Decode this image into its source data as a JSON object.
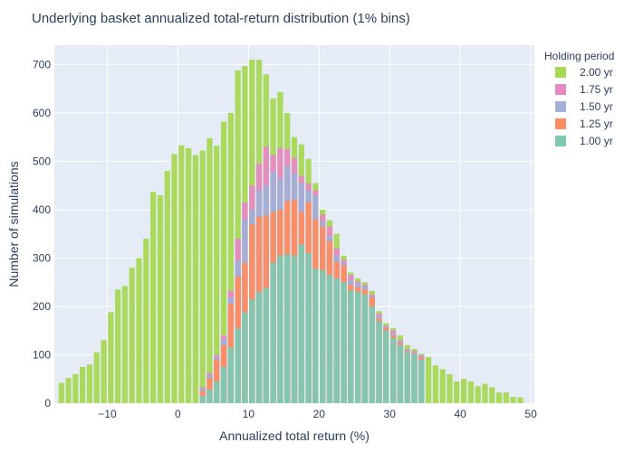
{
  "chart_data": {
    "type": "bar",
    "title": "Underlying basket annualized total-return distribution (1% bins)",
    "xlabel": "Annualized total return (%)",
    "ylabel": "Number of simulations",
    "xlim": [
      -17.5,
      50.5
    ],
    "ylim": [
      0,
      740
    ],
    "xticks": [
      -10,
      0,
      10,
      20,
      30,
      40,
      50
    ],
    "yticks": [
      0,
      100,
      200,
      300,
      400,
      500,
      600,
      700
    ],
    "barmode": "overlay",
    "legend_title": "Holding period",
    "legend_position": "top-right",
    "background": "#e5ecf6",
    "series": [
      {
        "name": "2.00 yr",
        "color": "#a6d854",
        "x": [
          -16.5,
          -15.5,
          -14.5,
          -13.5,
          -12.5,
          -11.5,
          -10.5,
          -9.5,
          -8.5,
          -7.5,
          -6.5,
          -5.5,
          -4.5,
          -3.5,
          -2.5,
          -1.5,
          -0.5,
          0.5,
          1.5,
          2.5,
          3.5,
          4.5,
          5.5,
          6.5,
          7.5,
          8.5,
          9.5,
          10.5,
          11.5,
          12.5,
          13.5,
          14.5,
          15.5,
          16.5,
          17.5,
          18.5,
          19.5,
          20.5,
          21.5,
          22.5,
          23.5,
          24.5,
          25.5,
          26.5,
          27.5,
          28.5,
          29.5,
          30.5,
          31.5,
          32.5,
          33.5,
          34.5,
          35.5,
          36.5,
          37.5,
          38.5,
          39.5,
          40.5,
          41.5,
          42.5,
          43.5,
          44.5,
          45.5,
          46.5,
          47.5,
          48.5
        ],
        "values": [
          42,
          52,
          60,
          75,
          80,
          105,
          130,
          188,
          235,
          242,
          280,
          300,
          340,
          437,
          430,
          480,
          515,
          533,
          527,
          513,
          522,
          548,
          532,
          582,
          600,
          688,
          697,
          710,
          710,
          680,
          630,
          643,
          600,
          550,
          535,
          505,
          455,
          400,
          378,
          350,
          305,
          270,
          258,
          250,
          232,
          190,
          165,
          155,
          140,
          120,
          112,
          102,
          95,
          78,
          70,
          60,
          45,
          50,
          45,
          35,
          40,
          33,
          22,
          22,
          13,
          12
        ]
      },
      {
        "name": "1.75 yr",
        "color": "#e78ac3",
        "x": [
          3.5,
          4.5,
          5.5,
          6.5,
          7.5,
          8.5,
          9.5,
          10.5,
          11.5,
          12.5,
          13.5,
          14.5,
          15.5,
          16.5,
          17.5,
          18.5,
          19.5,
          20.5,
          21.5,
          22.5,
          23.5,
          24.5,
          25.5,
          26.5,
          27.5,
          28.5,
          29.5,
          30.5,
          31.5,
          32.5,
          33.5,
          34.5
        ],
        "values": [
          33,
          62,
          100,
          140,
          232,
          340,
          415,
          450,
          495,
          530,
          513,
          527,
          525,
          507,
          470,
          455,
          440,
          390,
          365,
          320,
          296,
          265,
          252,
          245,
          225,
          185,
          160,
          150,
          130,
          112,
          108,
          100
        ]
      },
      {
        "name": "1.50 yr",
        "color": "#a2b0d7",
        "x": [
          3.5,
          4.5,
          5.5,
          6.5,
          7.5,
          8.5,
          9.5,
          10.5,
          11.5,
          12.5,
          13.5,
          14.5,
          15.5,
          16.5,
          17.5,
          18.5,
          19.5,
          20.5,
          21.5,
          22.5,
          23.5,
          24.5,
          25.5,
          26.5,
          27.5,
          28.5,
          29.5,
          30.5,
          31.5,
          32.5,
          33.5,
          34.5
        ],
        "values": [
          30,
          58,
          95,
          132,
          218,
          295,
          380,
          400,
          440,
          450,
          478,
          465,
          490,
          475,
          455,
          440,
          430,
          375,
          345,
          305,
          290,
          255,
          248,
          242,
          220,
          180,
          158,
          145,
          128,
          110,
          106,
          98
        ]
      },
      {
        "name": "1.25 yr",
        "color": "#fc8d62",
        "x": [
          3.5,
          4.5,
          5.5,
          6.5,
          7.5,
          8.5,
          9.5,
          10.5,
          11.5,
          12.5,
          13.5,
          14.5,
          15.5,
          16.5,
          17.5,
          18.5,
          19.5,
          20.5,
          21.5,
          22.5,
          23.5,
          24.5,
          25.5,
          26.5,
          27.5,
          28.5,
          29.5,
          30.5,
          31.5,
          32.5,
          33.5,
          34.5
        ],
        "values": [
          25,
          52,
          90,
          120,
          205,
          262,
          290,
          370,
          385,
          388,
          395,
          400,
          418,
          420,
          395,
          415,
          380,
          365,
          335,
          292,
          285,
          245,
          240,
          235,
          218,
          175,
          155,
          140,
          125,
          108,
          104,
          95
        ]
      },
      {
        "name": "1.00 yr",
        "color": "#7fc9b2",
        "x": [
          3.5,
          4.5,
          5.5,
          6.5,
          7.5,
          8.5,
          9.5,
          10.5,
          11.5,
          12.5,
          13.5,
          14.5,
          15.5,
          16.5,
          17.5,
          18.5,
          19.5,
          20.5,
          21.5,
          22.5,
          23.5,
          24.5,
          25.5,
          26.5,
          27.5,
          28.5,
          29.5,
          30.5,
          31.5,
          32.5,
          33.5,
          34.5
        ],
        "values": [
          15,
          28,
          45,
          75,
          115,
          155,
          188,
          215,
          230,
          238,
          290,
          305,
          308,
          305,
          328,
          310,
          278,
          275,
          265,
          258,
          250,
          233,
          230,
          225,
          200,
          170,
          150,
          135,
          120,
          106,
          102,
          90
        ]
      }
    ]
  }
}
